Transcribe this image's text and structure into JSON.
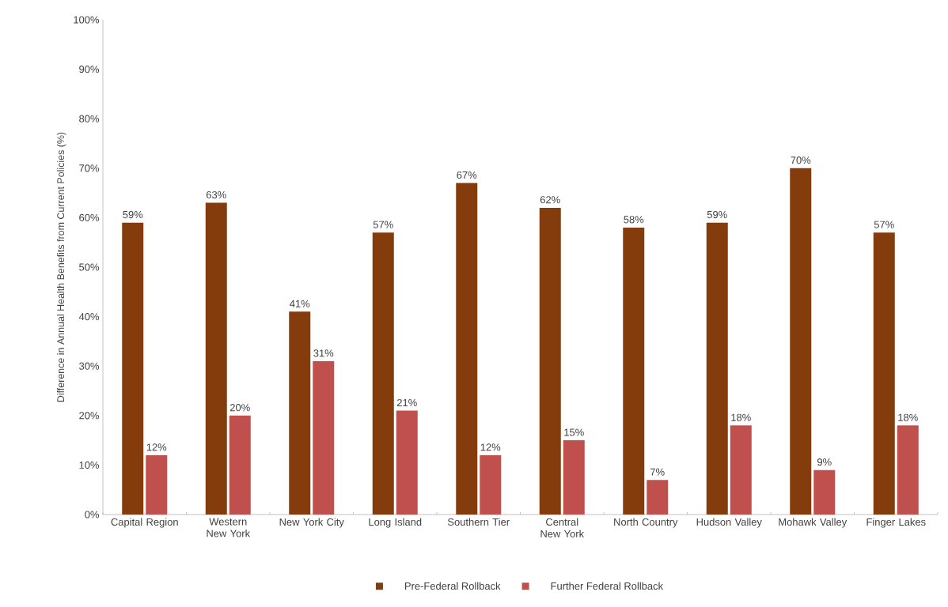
{
  "chart_data": {
    "type": "bar",
    "ylabel": "Difference in Annual Health Benefits from Current Policies (%)",
    "categories": [
      "Capital Region",
      "Western New York",
      "New York City",
      "Long Island",
      "Southern Tier",
      "Central New York",
      "North Country",
      "Hudson Valley",
      "Mohawk Valley",
      "Finger Lakes"
    ],
    "series": [
      {
        "name": "Pre-Federal Rollback",
        "color": "#843c0c",
        "values": [
          59,
          63,
          41,
          57,
          67,
          62,
          58,
          59,
          70,
          57
        ],
        "value_labels": [
          "59%",
          "63%",
          "41%",
          "57%",
          "67%",
          "62%",
          "58%",
          "59%",
          "70%",
          "57%"
        ]
      },
      {
        "name": "Further Federal Rollback",
        "color": "#c0504d",
        "values": [
          12,
          20,
          31,
          21,
          12,
          15,
          7,
          18,
          9,
          18
        ],
        "value_labels": [
          "12%",
          "20%",
          "31%",
          "21%",
          "12%",
          "15%",
          "7%",
          "18%",
          "9%",
          "18%"
        ]
      }
    ],
    "ylim": [
      0,
      100
    ],
    "yticks": [
      {
        "value": 0,
        "label": "0%"
      },
      {
        "value": 10,
        "label": "10%"
      },
      {
        "value": 20,
        "label": "20%"
      },
      {
        "value": 30,
        "label": "30%"
      },
      {
        "value": 40,
        "label": "40%"
      },
      {
        "value": 50,
        "label": "50%"
      },
      {
        "value": 60,
        "label": "60%"
      },
      {
        "value": 70,
        "label": "70%"
      },
      {
        "value": 80,
        "label": "80%"
      },
      {
        "value": 90,
        "label": "90%"
      },
      {
        "value": 100,
        "label": "100%"
      }
    ],
    "grid": false,
    "legend": "bottom"
  }
}
